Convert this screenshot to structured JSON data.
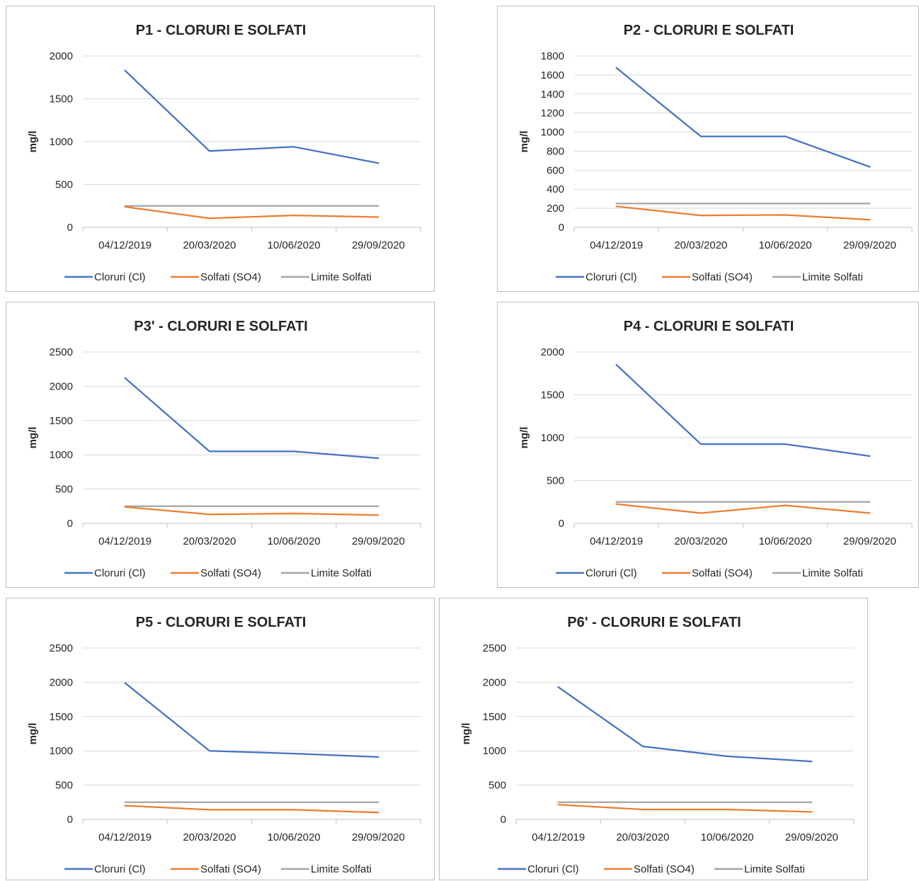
{
  "colors": {
    "cloruri": "#4472c4",
    "solfati": "#ed7d31",
    "limite": "#a5a5a5",
    "grid": "#d9d9d9",
    "axis": "#bfbfbf"
  },
  "chart_data": [
    {
      "type": "line",
      "title": "P1 - CLORURI E SOLFATI",
      "ylabel": "mg/l",
      "categories": [
        "04/12/2019",
        "20/03/2020",
        "10/06/2020",
        "29/09/2020"
      ],
      "yticks": [
        "0",
        "500",
        "1000",
        "1500",
        "2000"
      ],
      "ylim": [
        0,
        2000
      ],
      "grid": true,
      "legend": "bottom",
      "series": [
        {
          "name": "Cloruri (Cl)",
          "values": [
            1830,
            890,
            940,
            750
          ]
        },
        {
          "name": "Solfati (SO4)",
          "values": [
            240,
            105,
            140,
            120
          ]
        },
        {
          "name": "Limite Solfati",
          "values": [
            250,
            250,
            250,
            250
          ]
        }
      ]
    },
    {
      "type": "line",
      "title": "P2 - CLORURI E SOLFATI",
      "ylabel": "mg/l",
      "categories": [
        "04/12/2019",
        "20/03/2020",
        "10/06/2020",
        "29/09/2020"
      ],
      "yticks": [
        "0",
        "200",
        "400",
        "600",
        "800",
        "1000",
        "1200",
        "1400",
        "1600",
        "1800"
      ],
      "ylim": [
        0,
        1800
      ],
      "grid": true,
      "legend": "bottom",
      "series": [
        {
          "name": "Cloruri (Cl)",
          "values": [
            1675,
            955,
            955,
            635
          ]
        },
        {
          "name": "Solfati (SO4)",
          "values": [
            220,
            125,
            130,
            80
          ]
        },
        {
          "name": "Limite Solfati",
          "values": [
            250,
            250,
            250,
            250
          ]
        }
      ]
    },
    {
      "type": "line",
      "title": "P3' - CLORURI E SOLFATI",
      "ylabel": "mg/l",
      "categories": [
        "04/12/2019",
        "20/03/2020",
        "10/06/2020",
        "29/09/2020"
      ],
      "yticks": [
        "0",
        "500",
        "1000",
        "1500",
        "2000",
        "2500"
      ],
      "ylim": [
        0,
        2500
      ],
      "grid": true,
      "legend": "bottom",
      "series": [
        {
          "name": "Cloruri (Cl)",
          "values": [
            2120,
            1050,
            1050,
            950
          ]
        },
        {
          "name": "Solfati (SO4)",
          "values": [
            240,
            130,
            145,
            120
          ]
        },
        {
          "name": "Limite Solfati",
          "values": [
            250,
            250,
            250,
            250
          ]
        }
      ]
    },
    {
      "type": "line",
      "title": "P4 - CLORURI E SOLFATI",
      "ylabel": "mg/l",
      "categories": [
        "04/12/2019",
        "20/03/2020",
        "10/06/2020",
        "29/09/2020"
      ],
      "yticks": [
        "0",
        "500",
        "1000",
        "1500",
        "2000"
      ],
      "ylim": [
        0,
        2000
      ],
      "grid": true,
      "legend": "bottom",
      "series": [
        {
          "name": "Cloruri (Cl)",
          "values": [
            1850,
            925,
            925,
            785
          ]
        },
        {
          "name": "Solfati (SO4)",
          "values": [
            225,
            120,
            210,
            120
          ]
        },
        {
          "name": "Limite Solfati",
          "values": [
            250,
            250,
            250,
            250
          ]
        }
      ]
    },
    {
      "type": "line",
      "title": "P5 - CLORURI E SOLFATI",
      "ylabel": "mg/l",
      "categories": [
        "04/12/2019",
        "20/03/2020",
        "10/06/2020",
        "29/09/2020"
      ],
      "yticks": [
        "0",
        "500",
        "1000",
        "1500",
        "2000",
        "2500"
      ],
      "ylim": [
        0,
        2500
      ],
      "grid": true,
      "legend": "bottom",
      "series": [
        {
          "name": "Cloruri (Cl)",
          "values": [
            1990,
            1000,
            960,
            910
          ]
        },
        {
          "name": "Solfati (SO4)",
          "values": [
            200,
            140,
            140,
            100
          ]
        },
        {
          "name": "Limite Solfati",
          "values": [
            250,
            250,
            250,
            250
          ]
        }
      ]
    },
    {
      "type": "line",
      "title": "P6' - CLORURI E SOLFATI",
      "ylabel": "mg/l",
      "categories": [
        "04/12/2019",
        "20/03/2020",
        "10/06/2020",
        "29/09/2020"
      ],
      "yticks": [
        "0",
        "500",
        "1000",
        "1500",
        "2000",
        "2500"
      ],
      "ylim": [
        0,
        2500
      ],
      "grid": true,
      "legend": "bottom",
      "series": [
        {
          "name": "Cloruri (Cl)",
          "values": [
            1930,
            1065,
            920,
            845
          ]
        },
        {
          "name": "Solfati (SO4)",
          "values": [
            215,
            145,
            145,
            110
          ]
        },
        {
          "name": "Limite Solfati",
          "values": [
            250,
            250,
            250,
            250
          ]
        }
      ]
    }
  ]
}
